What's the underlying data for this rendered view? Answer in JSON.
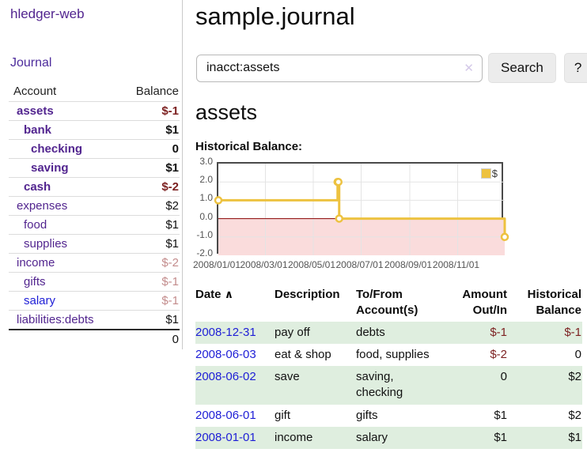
{
  "app": {
    "title": "hledger-web"
  },
  "sidebar": {
    "nav": {
      "journal": "Journal"
    },
    "accounts": {
      "headers": {
        "account": "Account",
        "balance": "Balance"
      },
      "rows": [
        {
          "name": "assets",
          "balance": "$-1"
        },
        {
          "name": "bank",
          "balance": "$1"
        },
        {
          "name": "checking",
          "balance": "0"
        },
        {
          "name": "saving",
          "balance": "$1"
        },
        {
          "name": "cash",
          "balance": "$-2"
        },
        {
          "name": "expenses",
          "balance": "$2"
        },
        {
          "name": "food",
          "balance": "$1"
        },
        {
          "name": "supplies",
          "balance": "$1"
        },
        {
          "name": "income",
          "balance": "$-2"
        },
        {
          "name": "gifts",
          "balance": "$-1"
        },
        {
          "name": "salary",
          "balance": "$-1"
        },
        {
          "name": "liabilities:debts",
          "balance": "$1"
        }
      ],
      "total": "0"
    }
  },
  "main": {
    "title": "sample.journal",
    "search": {
      "value": "inacct:assets",
      "clear_icon": "✕",
      "search_label": "Search",
      "help_label": "?"
    },
    "section_title": "assets",
    "chart_label": "Historical Balance:"
  },
  "chart_data": {
    "type": "line",
    "step": true,
    "series": [
      {
        "name": "$",
        "points": [
          [
            "2008-01-01",
            1
          ],
          [
            "2008-06-01",
            2
          ],
          [
            "2008-06-02",
            2
          ],
          [
            "2008-06-03",
            0
          ],
          [
            "2008-12-31",
            -1
          ]
        ]
      }
    ],
    "x_range": [
      "2008-01-01",
      "2008-12-31"
    ],
    "ylim": [
      -2,
      3
    ],
    "y_ticks": [
      "3.0",
      "2.0",
      "1.0",
      "0.0",
      "-1.0",
      "-2.0"
    ],
    "x_ticks": [
      "2008/01/01",
      "2008/03/01",
      "2008/05/01",
      "2008/07/01",
      "2008/09/01",
      "2008/11/01"
    ],
    "legend": "$",
    "legend_position": "top-right",
    "grid": true,
    "colors": {
      "series": "#edc240",
      "negative_region": "#fadcdc",
      "zero_line": "#8b0000",
      "gridline": "#e4e4e4",
      "axis_text": "#545454"
    }
  },
  "register": {
    "headers": {
      "date": "Date",
      "sort_indicator": "∧",
      "description": "Description",
      "tofrom": "To/From Account(s)",
      "amount": "Amount Out/In",
      "balance": "Historical Balance"
    },
    "rows": [
      {
        "date": "2008-12-31",
        "description": "pay off",
        "accounts": "debts",
        "amount": "$-1",
        "balance": "$-1"
      },
      {
        "date": "2008-06-03",
        "description": "eat & shop",
        "accounts": "food, supplies",
        "amount": "$-2",
        "balance": "0"
      },
      {
        "date": "2008-06-02",
        "description": "save",
        "accounts": "saving, checking",
        "amount": "0",
        "balance": "$2"
      },
      {
        "date": "2008-06-01",
        "description": "gift",
        "accounts": "gifts",
        "amount": "$1",
        "balance": "$2"
      },
      {
        "date": "2008-01-01",
        "description": "income",
        "accounts": "salary",
        "amount": "$1",
        "balance": "$1"
      }
    ]
  }
}
